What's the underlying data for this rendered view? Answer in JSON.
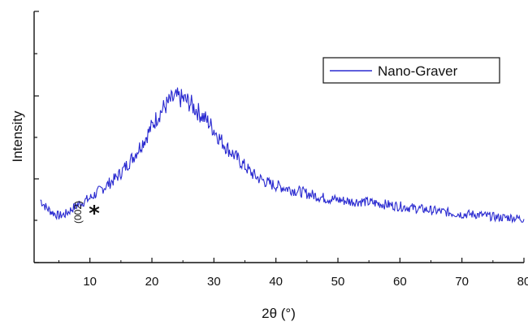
{
  "chart_data": {
    "type": "line",
    "title": "",
    "xlabel": "2θ (°)",
    "ylabel": "Intensity",
    "xlim": [
      1,
      80
    ],
    "ylim": [
      0,
      100
    ],
    "xticks": [
      10,
      20,
      30,
      40,
      50,
      60,
      70,
      80
    ],
    "y_tick_labels_shown": false,
    "grid": false,
    "legend": {
      "position": "top-right",
      "entries": [
        "Nano-Graver"
      ]
    },
    "series": [
      {
        "name": "Nano-Graver",
        "color": "#2a2ad0",
        "x": [
          2,
          3,
          4,
          5,
          6,
          7,
          8,
          9,
          10,
          11,
          12,
          13,
          14,
          15,
          16,
          17,
          18,
          19,
          20,
          21,
          22,
          23,
          24,
          25,
          26,
          27,
          28,
          29,
          30,
          31,
          32,
          33,
          34,
          35,
          36,
          37,
          38,
          39,
          40,
          42,
          44,
          46,
          48,
          50,
          52,
          54,
          56,
          58,
          60,
          62,
          64,
          66,
          68,
          70,
          72,
          74,
          76,
          78,
          80
        ],
        "y": [
          26,
          21,
          18,
          16,
          17,
          20,
          23,
          25,
          27,
          30,
          33,
          36,
          39,
          43,
          48,
          53,
          59,
          65,
          72,
          79,
          84,
          88,
          90,
          89,
          87,
          83,
          79,
          75,
          70,
          64,
          59,
          55,
          51,
          47,
          43,
          40,
          38,
          36,
          35,
          33,
          31,
          29,
          27,
          26,
          25,
          25,
          24,
          23,
          22,
          21,
          20,
          19,
          18,
          17,
          17,
          16,
          15,
          15,
          14
        ]
      }
    ],
    "annotations": [
      {
        "text": "(002)",
        "x": 7
      },
      {
        "text": "*",
        "x": 8.5
      }
    ]
  }
}
